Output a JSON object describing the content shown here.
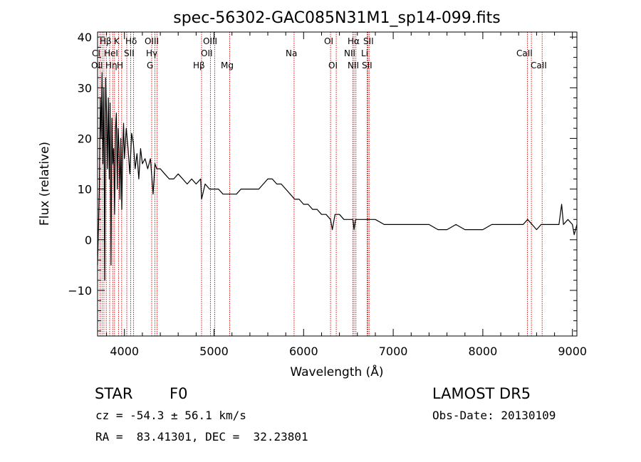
{
  "chart_data": {
    "type": "line",
    "title": "spec-56302-GAC085N31M1_sp14-099.fits",
    "xlabel": "Wavelength (Å)",
    "ylabel": "Flux (relative)",
    "xlim": [
      3700,
      9050
    ],
    "ylim": [
      -19,
      41
    ],
    "xticks": [
      4000,
      5000,
      6000,
      7000,
      8000,
      9000
    ],
    "yticks": [
      -10,
      0,
      10,
      20,
      30,
      40
    ],
    "grid": false,
    "line_color": "#000000",
    "marker_color": "#cc0000",
    "series": [
      {
        "x": [
          3700,
          3720,
          3730,
          3740,
          3750,
          3760,
          3770,
          3780,
          3790,
          3800,
          3810,
          3820,
          3830,
          3840,
          3850,
          3860,
          3870,
          3880,
          3890,
          3900,
          3910,
          3920,
          3930,
          3940,
          3950,
          3960,
          3970,
          3980,
          3990,
          4000,
          4020,
          4040,
          4060,
          4080,
          4100,
          4120,
          4140,
          4160,
          4180,
          4200,
          4230,
          4260,
          4290,
          4320,
          4340,
          4360,
          4400,
          4450,
          4500,
          4550,
          4600,
          4650,
          4700,
          4750,
          4800,
          4850,
          4861,
          4900,
          4950,
          5000,
          5050,
          5100,
          5150,
          5200,
          5250,
          5300,
          5350,
          5400,
          5450,
          5500,
          5550,
          5600,
          5650,
          5700,
          5750,
          5800,
          5850,
          5900,
          5950,
          6000,
          6050,
          6100,
          6150,
          6200,
          6250,
          6300,
          6320,
          6350,
          6400,
          6450,
          6500,
          6550,
          6563,
          6580,
          6600,
          6650,
          6700,
          6750,
          6800,
          6900,
          7000,
          7100,
          7200,
          7300,
          7400,
          7500,
          7600,
          7700,
          7800,
          7900,
          8000,
          8100,
          8200,
          8300,
          8400,
          8450,
          8500,
          8550,
          8600,
          8650,
          8700,
          8750,
          8800,
          8850,
          8880,
          8900,
          8950,
          9000,
          9020,
          9050
        ],
        "y": [
          -5,
          10,
          28,
          20,
          33,
          15,
          30,
          -8,
          32,
          25,
          14,
          28,
          12,
          27,
          -5,
          24,
          15,
          18,
          5,
          22,
          25,
          10,
          22,
          18,
          8,
          20,
          6,
          17,
          23,
          16,
          22,
          18,
          13,
          21,
          19,
          14,
          17,
          12,
          18,
          15,
          16,
          14,
          16,
          9,
          15,
          14,
          14,
          13,
          12,
          12,
          13,
          12,
          11,
          12,
          11,
          12,
          8,
          11,
          10,
          10,
          10,
          9,
          9,
          9,
          9,
          10,
          10,
          10,
          10,
          10,
          11,
          12,
          12,
          11,
          11,
          10,
          9,
          8,
          8,
          7,
          7,
          6,
          6,
          5,
          5,
          4,
          2,
          5,
          5,
          4,
          4,
          4,
          2,
          4,
          4,
          4,
          4,
          4,
          4,
          3,
          3,
          3,
          3,
          3,
          3,
          2,
          2,
          3,
          2,
          2,
          2,
          3,
          3,
          3,
          3,
          3,
          4,
          3,
          2,
          3,
          3,
          3,
          3,
          3,
          7,
          3,
          4,
          3,
          1,
          3
        ]
      }
    ],
    "lines_top": [
      "Hβ",
      "K",
      "Hδ",
      "OIII",
      "OIII",
      "OI",
      "Hα",
      "SII"
    ],
    "lines_middle": [
      "CI",
      "HeI",
      "SII",
      "Hγ",
      "OII",
      "Na",
      "NII",
      "Li",
      "CaII"
    ],
    "lines_bottom": [
      "OII",
      "Hη",
      "H",
      "G",
      "Hβ",
      "Mg",
      "OI",
      "NII",
      "SII",
      "CaII"
    ],
    "line_positions": [
      3727,
      3750,
      3771,
      3797,
      3835,
      3869,
      3889,
      3934,
      3969,
      4026,
      4070,
      4102,
      4304,
      4340,
      4363,
      4861,
      4959,
      5007,
      5175,
      5893,
      6300,
      6364,
      6548,
      6563,
      6583,
      6708,
      6717,
      6731,
      8498,
      8542,
      8662
    ]
  },
  "info": {
    "object_class": "STAR",
    "subclass": "F0",
    "survey": "LAMOST DR5",
    "cz": "cz = -54.3 ± 56.1 km/s",
    "obs_date": "Obs-Date: 20130109",
    "coords": "RA =  83.41301, DEC =  32.23801"
  }
}
